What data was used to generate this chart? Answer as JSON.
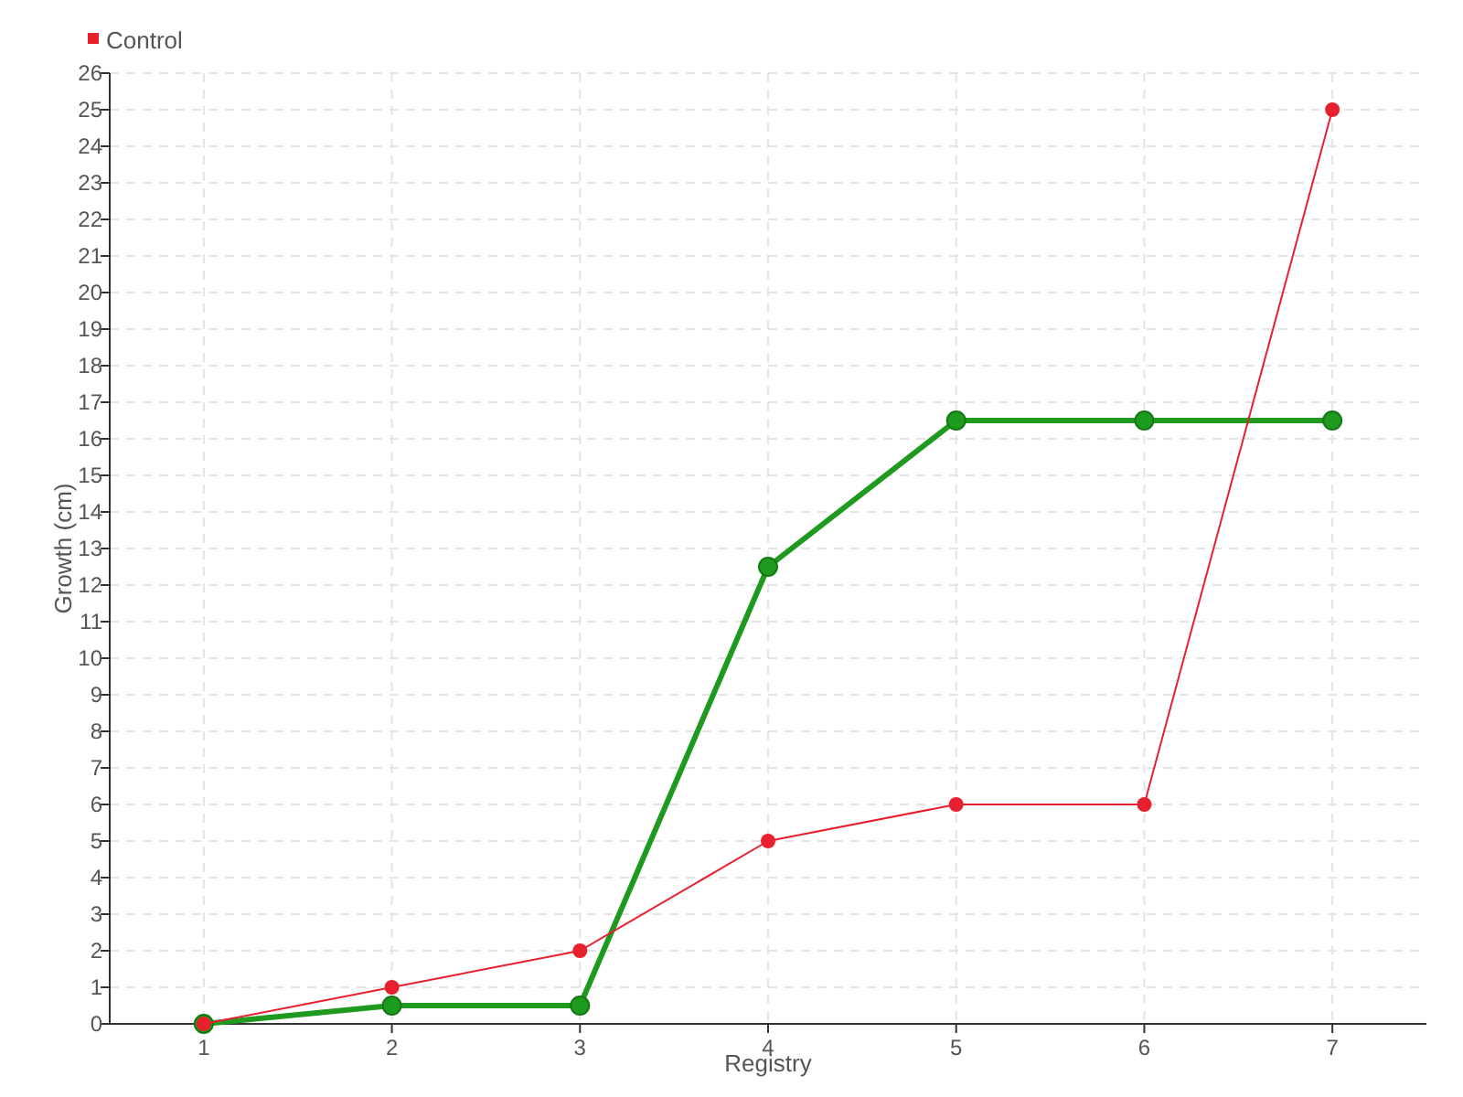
{
  "chart_data": {
    "type": "line",
    "xlabel": "Registry",
    "ylabel": "Growth (cm)",
    "categories": [
      "1",
      "2",
      "3",
      "4",
      "5",
      "6",
      "7"
    ],
    "series": [
      {
        "color": "#1e9a1e",
        "values": [
          0,
          0.5,
          0.5,
          12.5,
          16.5,
          16.5,
          16.5
        ]
      },
      {
        "name": "Control",
        "color": "#e8202e",
        "values": [
          0,
          1,
          2,
          5,
          6,
          6,
          25
        ]
      }
    ],
    "ylim": [
      0,
      26
    ],
    "yticks": [
      0,
      1,
      2,
      3,
      4,
      5,
      6,
      7,
      8,
      9,
      10,
      11,
      12,
      13,
      14,
      15,
      16,
      17,
      18,
      19,
      20,
      21,
      22,
      23,
      24,
      25,
      26
    ],
    "grid": true,
    "legend": "top left",
    "marker": "circle",
    "line_style": "solid"
  }
}
